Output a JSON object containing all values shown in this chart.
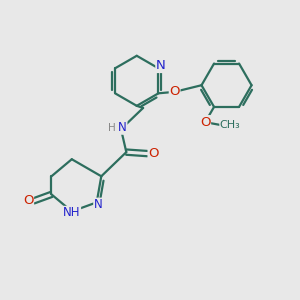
{
  "bg_color": "#e8e8e8",
  "bond_color": "#2d6e5e",
  "bond_width": 1.6,
  "atom_colors": {
    "N": "#2222cc",
    "O": "#cc2200",
    "C": "#2d6e5e",
    "H": "#888888"
  },
  "font_size": 8.5,
  "fig_size": [
    3.0,
    3.0
  ],
  "dpi": 100
}
